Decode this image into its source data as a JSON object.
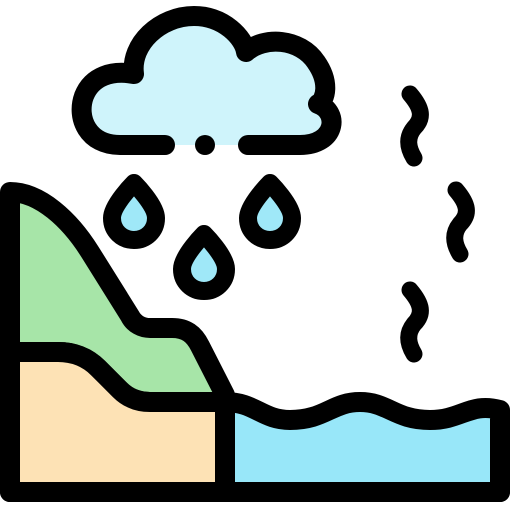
{
  "icon": {
    "name": "water-cycle-landscape-icon",
    "colors": {
      "outline": "#000000",
      "cloud": "#CFF4FB",
      "rain": "#9FE8F8",
      "water": "#98E7F9",
      "hill_green": "#A7E5A8",
      "sand": "#FDE2B5"
    },
    "parts": [
      "cloud-icon",
      "raindrop-icon",
      "evaporation-icon",
      "hill-icon",
      "sand-icon",
      "water-icon"
    ]
  }
}
